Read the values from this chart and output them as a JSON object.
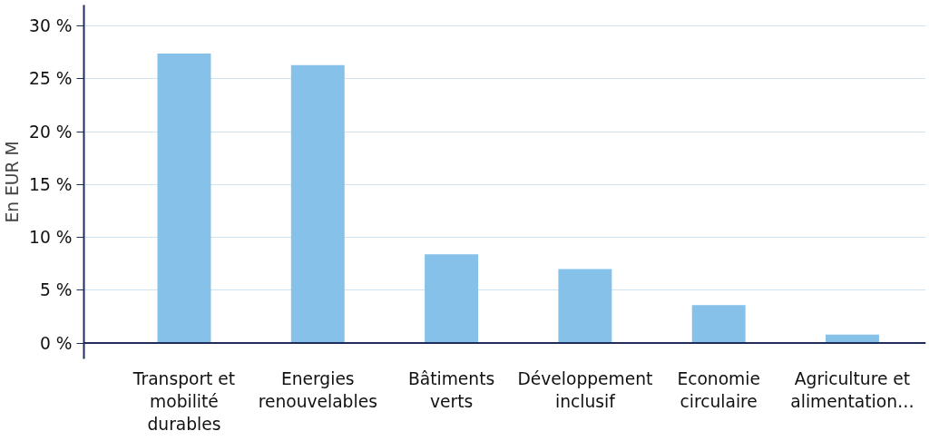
{
  "chart_data": {
    "type": "bar",
    "ylabel": "En EUR M",
    "categories": [
      "Transport et mobilité durables",
      "Energies renouvelables",
      "Bâtiments verts",
      "Développement inclusif",
      "Economie circulaire",
      "Agriculture et alimentation…"
    ],
    "values": [
      27.4,
      26.3,
      8.4,
      7.0,
      3.6,
      0.8
    ],
    "color": "#85c1e9",
    "ylim": [
      -1.5,
      32
    ],
    "yticks": [
      {
        "value": 0,
        "label": "0 %"
      },
      {
        "value": 5,
        "label": "5 %"
      },
      {
        "value": 10,
        "label": "10 %"
      },
      {
        "value": 15,
        "label": "15 %"
      },
      {
        "value": 20,
        "label": "20 %"
      },
      {
        "value": 25,
        "label": "25 %"
      },
      {
        "value": 30,
        "label": "30 %"
      }
    ],
    "grid": "y"
  }
}
